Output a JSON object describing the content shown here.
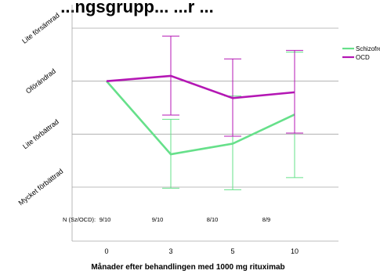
{
  "chart_data": {
    "type": "line",
    "title": "...ngsgrupp... ...r ...",
    "xlabel": "Månader efter behandlingen med 1000 mg rituximab",
    "ylabel": "",
    "categories": [
      "0",
      "3",
      "5",
      "10"
    ],
    "y_categories": [
      "Mycket förbättrad",
      "Lite förbättrad",
      "Oförändrad",
      "Lite försämrad"
    ],
    "ylim": [
      -3,
      1
    ],
    "grid": true,
    "legend_position": "top-right",
    "series": [
      {
        "name": "Schizofreni",
        "color": "#66e08a",
        "values": [
          0,
          -1.38,
          -1.18,
          -0.63
        ],
        "error_upper": [
          0,
          -0.72,
          -0.28,
          0.55
        ],
        "error_lower": [
          0,
          -2.02,
          -2.05,
          -1.82
        ]
      },
      {
        "name": "OCD",
        "color": "#b417b4",
        "values": [
          0,
          0.1,
          -0.32,
          -0.21
        ],
        "error_upper": [
          0,
          0.85,
          0.42,
          0.58
        ],
        "error_lower": [
          0,
          -0.64,
          -1.04,
          -0.98
        ]
      }
    ],
    "annotations": {
      "n_label": "N (Sz/OCD):",
      "n_values": [
        "9/10",
        "9/10",
        "8/10",
        "8/9"
      ]
    }
  }
}
